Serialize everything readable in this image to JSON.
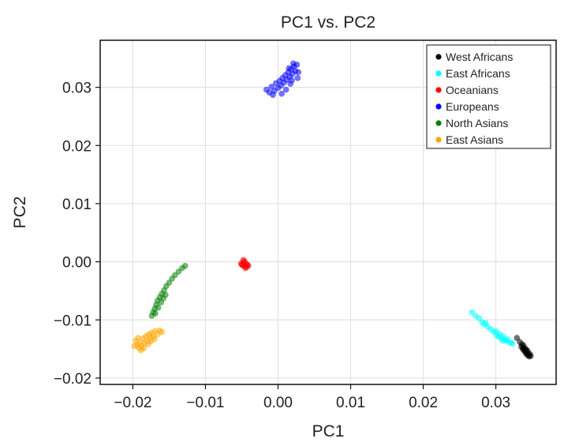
{
  "chart_data": {
    "type": "scatter",
    "title": "PC1 vs. PC2",
    "xlabel": "PC1",
    "ylabel": "PC2",
    "xlim": [
      -0.0245,
      0.0383
    ],
    "ylim": [
      -0.0211,
      0.0381
    ],
    "xticks": [
      -0.02,
      -0.01,
      0.0,
      0.01,
      0.02,
      0.03
    ],
    "xtick_labels": [
      "−0.02",
      "−0.01",
      "0.00",
      "0.01",
      "0.02",
      "0.03"
    ],
    "yticks": [
      -0.02,
      -0.01,
      0.0,
      0.01,
      0.02,
      0.03
    ],
    "ytick_labels": [
      "−0.02",
      "−0.01",
      "0.00",
      "0.01",
      "0.02",
      "0.03"
    ],
    "grid": true,
    "legend_position": "top-right",
    "series": [
      {
        "name": "West Africans",
        "color": "#000000",
        "points": [
          [
            0.0329,
            -0.0131
          ],
          [
            0.0333,
            -0.0138
          ],
          [
            0.0336,
            -0.0142
          ],
          [
            0.0338,
            -0.0148
          ],
          [
            0.034,
            -0.0152
          ],
          [
            0.0342,
            -0.0155
          ],
          [
            0.0344,
            -0.0158
          ],
          [
            0.0345,
            -0.0161
          ],
          [
            0.0346,
            -0.0163
          ],
          [
            0.0343,
            -0.016
          ],
          [
            0.0341,
            -0.0157
          ],
          [
            0.0339,
            -0.0153
          ],
          [
            0.0337,
            -0.015
          ],
          [
            0.0335,
            -0.0146
          ],
          [
            0.0347,
            -0.0159
          ],
          [
            0.0348,
            -0.0162
          ],
          [
            0.0344,
            -0.0154
          ],
          [
            0.034,
            -0.0149
          ],
          [
            0.0338,
            -0.0144
          ],
          [
            0.0342,
            -0.0151
          ]
        ]
      },
      {
        "name": "East Africans",
        "color": "#00ffff",
        "points": [
          [
            0.0267,
            -0.0087
          ],
          [
            0.0272,
            -0.0093
          ],
          [
            0.0277,
            -0.0097
          ],
          [
            0.0281,
            -0.0104
          ],
          [
            0.0284,
            -0.0108
          ],
          [
            0.0286,
            -0.0105
          ],
          [
            0.0289,
            -0.0112
          ],
          [
            0.0293,
            -0.0116
          ],
          [
            0.0297,
            -0.0121
          ],
          [
            0.0301,
            -0.0126
          ],
          [
            0.0304,
            -0.0129
          ],
          [
            0.0307,
            -0.0131
          ],
          [
            0.031,
            -0.0128
          ],
          [
            0.0312,
            -0.0134
          ],
          [
            0.0314,
            -0.0136
          ],
          [
            0.0316,
            -0.0133
          ],
          [
            0.0318,
            -0.0138
          ],
          [
            0.0321,
            -0.0139
          ],
          [
            0.0323,
            -0.0141
          ],
          [
            0.0309,
            -0.0136
          ],
          [
            0.0305,
            -0.0124
          ],
          [
            0.03,
            -0.0119
          ]
        ]
      },
      {
        "name": "Oceanians",
        "color": "#ff0000",
        "points": [
          [
            -0.0051,
            -0.0003
          ],
          [
            -0.0049,
            -0.0006
          ],
          [
            -0.0047,
            -0.0001
          ],
          [
            -0.0046,
            -0.0008
          ],
          [
            -0.0044,
            -0.0004
          ],
          [
            -0.0043,
            -0.0009
          ],
          [
            -0.0042,
            -0.0005
          ],
          [
            -0.0048,
            0.0003
          ],
          [
            -0.0045,
            -0.0011
          ],
          [
            -0.0041,
            -0.0007
          ],
          [
            -0.005,
            -0.0005
          ],
          [
            -0.0046,
            0.0001
          ]
        ]
      },
      {
        "name": "Europeans",
        "color": "#0000ff",
        "points": [
          [
            -0.0016,
            0.0296
          ],
          [
            -0.0012,
            0.0291
          ],
          [
            -0.0009,
            0.0301
          ],
          [
            -0.0005,
            0.0294
          ],
          [
            -0.0003,
            0.0307
          ],
          [
            0.0,
            0.0299
          ],
          [
            0.0002,
            0.0311
          ],
          [
            0.0004,
            0.0303
          ],
          [
            0.0006,
            0.0316
          ],
          [
            0.0008,
            0.0308
          ],
          [
            0.001,
            0.0321
          ],
          [
            0.0012,
            0.0313
          ],
          [
            0.0014,
            0.0326
          ],
          [
            0.0016,
            0.0318
          ],
          [
            0.0018,
            0.0331
          ],
          [
            0.002,
            0.0323
          ],
          [
            0.0022,
            0.0336
          ],
          [
            0.0024,
            0.0328
          ],
          [
            0.0026,
            0.0339
          ],
          [
            0.0021,
            0.0341
          ],
          [
            0.0017,
            0.0306
          ],
          [
            0.0011,
            0.0296
          ],
          [
            0.0027,
            0.0316
          ],
          [
            0.0028,
            0.0326
          ],
          [
            -0.0007,
            0.0287
          ],
          [
            0.0005,
            0.0289
          ],
          [
            0.0015,
            0.0333
          ],
          [
            0.0019,
            0.0312
          ]
        ]
      },
      {
        "name": "North Asians",
        "color": "#008000",
        "points": [
          [
            -0.0174,
            -0.0093
          ],
          [
            -0.0172,
            -0.0087
          ],
          [
            -0.017,
            -0.0081
          ],
          [
            -0.0168,
            -0.0074
          ],
          [
            -0.0166,
            -0.0067
          ],
          [
            -0.0163,
            -0.0061
          ],
          [
            -0.016,
            -0.0055
          ],
          [
            -0.0157,
            -0.0049
          ],
          [
            -0.0154,
            -0.0042
          ],
          [
            -0.015,
            -0.0036
          ],
          [
            -0.0146,
            -0.0029
          ],
          [
            -0.0142,
            -0.0023
          ],
          [
            -0.0137,
            -0.0017
          ],
          [
            -0.0132,
            -0.0011
          ],
          [
            -0.0128,
            -0.0007
          ],
          [
            -0.0165,
            -0.0079
          ],
          [
            -0.0161,
            -0.007
          ],
          [
            -0.0158,
            -0.0063
          ],
          [
            -0.0155,
            -0.0057
          ],
          [
            -0.0169,
            -0.0089
          ]
        ]
      },
      {
        "name": "East Asians",
        "color": "#ffa500",
        "points": [
          [
            -0.0196,
            -0.0136
          ],
          [
            -0.0194,
            -0.0143
          ],
          [
            -0.0192,
            -0.0148
          ],
          [
            -0.019,
            -0.0139
          ],
          [
            -0.0188,
            -0.0145
          ],
          [
            -0.0186,
            -0.0132
          ],
          [
            -0.0184,
            -0.014
          ],
          [
            -0.0182,
            -0.0128
          ],
          [
            -0.018,
            -0.0136
          ],
          [
            -0.0178,
            -0.0125
          ],
          [
            -0.0176,
            -0.0131
          ],
          [
            -0.0174,
            -0.0122
          ],
          [
            -0.0172,
            -0.0128
          ],
          [
            -0.0169,
            -0.0119
          ],
          [
            -0.0166,
            -0.0125
          ],
          [
            -0.0163,
            -0.0118
          ],
          [
            -0.016,
            -0.0121
          ],
          [
            -0.0189,
            -0.0152
          ],
          [
            -0.0185,
            -0.0149
          ],
          [
            -0.0193,
            -0.0131
          ],
          [
            -0.0179,
            -0.0142
          ],
          [
            -0.0175,
            -0.0137
          ],
          [
            -0.0198,
            -0.0145
          ],
          [
            -0.017,
            -0.0133
          ]
        ]
      }
    ]
  }
}
